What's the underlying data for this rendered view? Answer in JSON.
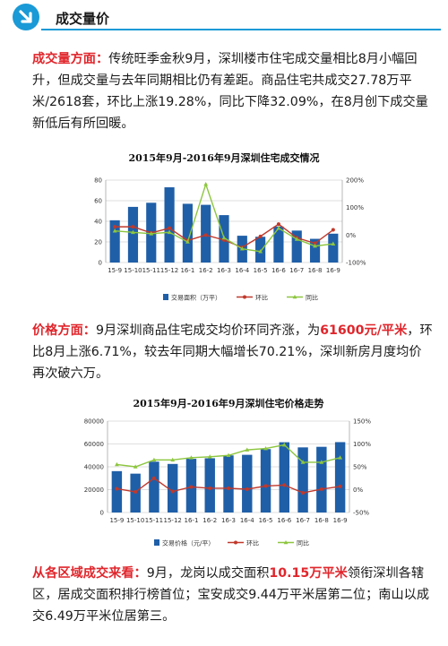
{
  "header": {
    "title": "成交量价"
  },
  "section1": {
    "lead": "成交量方面：",
    "text": "传统旺季金秋9月，深圳楼市住宅成交量相比8月小幅回升，但成交量与去年同期相比仍有差距。商品住宅共成交27.78万平米/2618套，环比上涨19.28%，同比下降32.09%，在8月创下成交量新低后有所回暖。"
  },
  "section2": {
    "lead": "价格方面：",
    "text_a": "9月深圳商品住宅成交均价环同齐涨，为",
    "price": "61600元/平米",
    "text_b": "，环比8月上涨6.71%，较去年同期大幅增长70.21%，深圳新房月度均价再次破六万。"
  },
  "section3": {
    "lead": "从各区域成交来看：",
    "text_a": "9月，龙岗以成交面积",
    "area": "10.15万平米",
    "text_b": "领衔深圳各辖区，居成交面积排行榜首位；宝安成交9.44万平米居第二位；南山以成交6.49万平米位居第三。"
  },
  "chart_data": [
    {
      "type": "bar",
      "title": "2015年9月-2016年9月深圳住宅成交情况",
      "categories": [
        "15-9",
        "15-10",
        "15-11",
        "15-12",
        "16-1",
        "16-2",
        "16-3",
        "16-4",
        "16-5",
        "16-6",
        "16-7",
        "16-8",
        "16-9"
      ],
      "ylim": [
        0,
        80
      ],
      "yticks": [
        0,
        20,
        40,
        60,
        80
      ],
      "y2lim": [
        -100,
        200
      ],
      "y2ticks": [
        "-100%",
        "0%",
        "100%",
        "200%"
      ],
      "bar_color": "#1f5fa8",
      "series": [
        {
          "name": "交易面积（万平）",
          "kind": "bar",
          "values": [
            41,
            54,
            58,
            73,
            57,
            56,
            46,
            26,
            25,
            35,
            31,
            23,
            28
          ]
        },
        {
          "name": "环比",
          "kind": "line",
          "axis": "right",
          "color": "#c0392b",
          "values": [
            30,
            30,
            8,
            25,
            -20,
            0,
            -18,
            -45,
            -5,
            40,
            -10,
            -30,
            19
          ]
        },
        {
          "name": "同比",
          "kind": "line",
          "axis": "right",
          "color": "#8dc63f",
          "values": [
            15,
            10,
            5,
            10,
            -25,
            185,
            -10,
            -50,
            -60,
            25,
            -15,
            -40,
            -32
          ]
        }
      ]
    },
    {
      "type": "bar",
      "title": "2015年9月-2016年9月深圳住宅价格走势",
      "categories": [
        "15-9",
        "15-10",
        "15-11",
        "15-12",
        "16-1",
        "16-2",
        "16-3",
        "16-4",
        "16-5",
        "16-6",
        "16-7",
        "16-8",
        "16-9"
      ],
      "ylim": [
        0,
        80000
      ],
      "yticks": [
        0,
        20000,
        40000,
        60000,
        80000
      ],
      "y2lim": [
        -50,
        150
      ],
      "y2ticks": [
        "-50%",
        "0%",
        "50%",
        "100%",
        "150%"
      ],
      "bar_color": "#1f5fa8",
      "series": [
        {
          "name": "交易价格（元/平）",
          "kind": "bar",
          "values": [
            36200,
            34000,
            44500,
            42500,
            47000,
            47500,
            50000,
            50500,
            55500,
            61500,
            57000,
            57500,
            61600
          ]
        },
        {
          "name": "环比",
          "kind": "line",
          "axis": "right",
          "color": "#c0392b",
          "values": [
            2,
            -5,
            25,
            -4,
            6,
            3,
            3,
            1,
            8,
            10,
            -7,
            1,
            7
          ]
        },
        {
          "name": "同比",
          "kind": "line",
          "axis": "right",
          "color": "#8dc63f",
          "values": [
            55,
            50,
            65,
            65,
            70,
            72,
            75,
            87,
            90,
            98,
            60,
            60,
            70
          ]
        }
      ]
    }
  ]
}
